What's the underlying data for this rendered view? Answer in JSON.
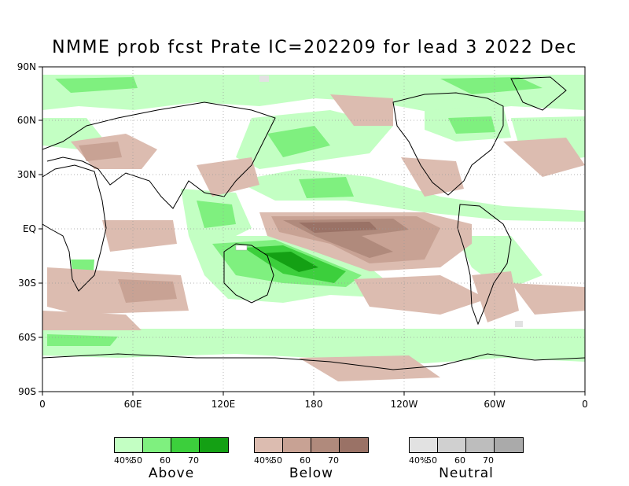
{
  "title": "NMME prob fcst Prate IC=202209 for lead 3 2022 Dec",
  "axes": {
    "y_ticks": [
      "90N",
      "60N",
      "30N",
      "EQ",
      "30S",
      "60S",
      "90S"
    ],
    "x_ticks": [
      "0",
      "60E",
      "120E",
      "180",
      "120W",
      "60W",
      "0"
    ]
  },
  "map_data": {
    "type": "probability-map",
    "lon_range": [
      0,
      360
    ],
    "lat_range": [
      -90,
      90
    ],
    "grid": true,
    "regions": [
      {
        "category": "below",
        "level": 70,
        "area": "central equatorial Pacific tongue"
      },
      {
        "category": "below",
        "level": 60,
        "area": "equatorial Pacific 170E-120W"
      },
      {
        "category": "below",
        "level": 50,
        "area": "southeast Pacific SPCZ band"
      },
      {
        "category": "above",
        "level": 70,
        "area": "northern Australia / SW Pacific"
      },
      {
        "category": "above",
        "level": 60,
        "area": "southwest Pacific band"
      },
      {
        "category": "above",
        "level": 50,
        "area": "Maritime Continent, North Pacific, Southern Ocean"
      },
      {
        "category": "above",
        "level": 40,
        "area": "high latitudes both hemispheres"
      },
      {
        "category": "below",
        "level": 40,
        "area": "southern US, central Asia, southern mid-latitudes"
      },
      {
        "category": "neutral",
        "level": 40,
        "area": "scattered small patches"
      }
    ]
  },
  "legends": [
    {
      "name": "Above",
      "ticks": [
        "40%",
        "50",
        "60",
        "70"
      ],
      "colors": [
        "#c3ffc3",
        "#7ff07f",
        "#3ccf3c",
        "#14a014"
      ]
    },
    {
      "name": "Below",
      "ticks": [
        "40%",
        "50",
        "60",
        "70"
      ],
      "colors": [
        "#dcbcb0",
        "#c8a294",
        "#b08a7c",
        "#9a7266"
      ]
    },
    {
      "name": "Neutral",
      "ticks": [
        "40%",
        "50",
        "60",
        "70"
      ],
      "colors": [
        "#e2e2e2",
        "#d0d0d0",
        "#bdbdbd",
        "#aaaaaa"
      ]
    }
  ]
}
